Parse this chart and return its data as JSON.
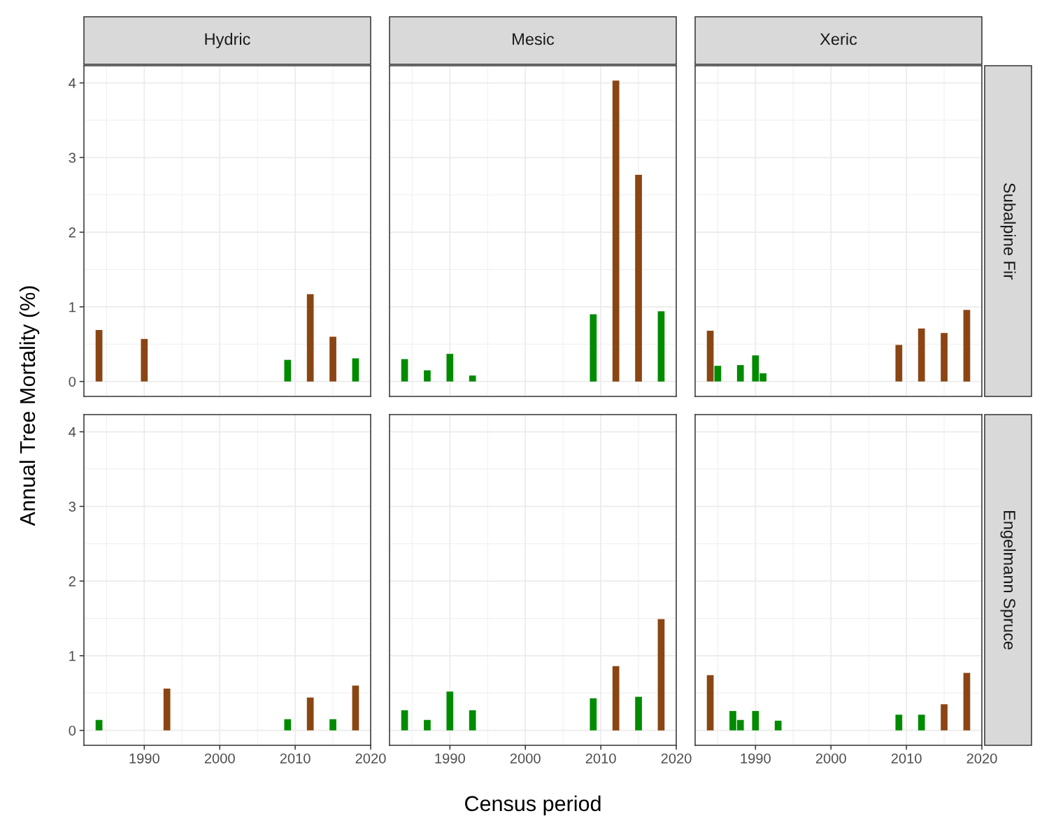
{
  "chart_data": [
    {
      "type": "bar",
      "title": "Hydric",
      "ylabel": "Annual Tree Mortality (%)",
      "x": [
        1984,
        1990,
        2009,
        2012,
        2015,
        2018
      ],
      "values": [
        0.69,
        0.57,
        0.29,
        1.17,
        0.6,
        0.31
      ],
      "colors": [
        "#8b4513",
        "#8b4513",
        "#008b00",
        "#8b4513",
        "#8b4513",
        "#008b00"
      ],
      "xlim": [
        1982,
        2020
      ],
      "xticks": [
        1990,
        2000,
        2010,
        2020
      ],
      "ylim": [
        -0.2,
        4.23
      ],
      "yticks": [
        0,
        1,
        2,
        3,
        4
      ],
      "grid": true,
      "tick_labels": "y"
    },
    {
      "type": "bar",
      "title": "Mesic",
      "x": [
        1984,
        1987,
        1990,
        1993,
        2009,
        2012,
        2015,
        2018
      ],
      "values": [
        0.3,
        0.15,
        0.37,
        0.08,
        0.9,
        4.03,
        2.77,
        0.94
      ],
      "colors": [
        "#008b00",
        "#008b00",
        "#008b00",
        "#008b00",
        "#008b00",
        "#8b4513",
        "#8b4513",
        "#008b00"
      ],
      "xlim": [
        1982,
        2020
      ],
      "xticks": [
        1990,
        2000,
        2010,
        2020
      ],
      "ylim": [
        -0.2,
        4.23
      ],
      "yticks": [
        0,
        1,
        2,
        3,
        4
      ],
      "grid": true,
      "tick_labels": false
    },
    {
      "type": "bar",
      "title": "Xeric",
      "y2label": "Subalpine Fir",
      "x": [
        1984,
        1985,
        1988,
        1990,
        1991,
        2009,
        2012,
        2015,
        2018
      ],
      "values": [
        0.68,
        0.21,
        0.22,
        0.35,
        0.11,
        0.49,
        0.71,
        0.65,
        0.96
      ],
      "colors": [
        "#8b4513",
        "#008b00",
        "#008b00",
        "#008b00",
        "#008b00",
        "#8b4513",
        "#8b4513",
        "#8b4513",
        "#8b4513"
      ],
      "xlim": [
        1982,
        2020
      ],
      "xticks": [
        1990,
        2000,
        2010,
        2020
      ],
      "ylim": [
        -0.2,
        4.23
      ],
      "yticks": [
        0,
        1,
        2,
        3,
        4
      ],
      "grid": true,
      "tick_labels": false
    },
    {
      "type": "bar",
      "x": [
        1984,
        1993,
        2009,
        2012,
        2015,
        2018
      ],
      "values": [
        0.14,
        0.56,
        0.15,
        0.44,
        0.15,
        0.6
      ],
      "colors": [
        "#008b00",
        "#8b4513",
        "#008b00",
        "#8b4513",
        "#008b00",
        "#8b4513"
      ],
      "xlim": [
        1982,
        2020
      ],
      "xticks": [
        1990,
        2000,
        2010,
        2020
      ],
      "ylim": [
        -0.2,
        4.23
      ],
      "yticks": [
        0,
        1,
        2,
        3,
        4
      ],
      "grid": true
    },
    {
      "type": "bar",
      "xlabel": "Census period",
      "x": [
        1984,
        1987,
        1990,
        1993,
        2009,
        2012,
        2015,
        2018
      ],
      "values": [
        0.27,
        0.14,
        0.52,
        0.27,
        0.43,
        0.86,
        0.45,
        1.49
      ],
      "colors": [
        "#008b00",
        "#008b00",
        "#008b00",
        "#008b00",
        "#008b00",
        "#8b4513",
        "#008b00",
        "#8b4513"
      ],
      "xlim": [
        1982,
        2020
      ],
      "xticks": [
        1990,
        2000,
        2010,
        2020
      ],
      "ylim": [
        -0.2,
        4.23
      ],
      "yticks": [
        0,
        1,
        2,
        3,
        4
      ],
      "grid": true,
      "tick_labels": "x"
    },
    {
      "type": "bar",
      "y2label": "Engelmann Spruce",
      "x": [
        1984,
        1987,
        1988,
        1990,
        1993,
        2009,
        2012,
        2015,
        2018
      ],
      "values": [
        0.74,
        0.26,
        0.14,
        0.26,
        0.13,
        0.21,
        0.21,
        0.35,
        0.77
      ],
      "colors": [
        "#8b4513",
        "#008b00",
        "#008b00",
        "#008b00",
        "#008b00",
        "#008b00",
        "#008b00",
        "#8b4513",
        "#8b4513"
      ],
      "xlim": [
        1982,
        2020
      ],
      "xticks": [
        1990,
        2000,
        2010,
        2020
      ],
      "ylim": [
        -0.2,
        4.23
      ],
      "yticks": [
        0,
        1,
        2,
        3,
        4
      ],
      "grid": true,
      "tick_labels": "x"
    }
  ]
}
